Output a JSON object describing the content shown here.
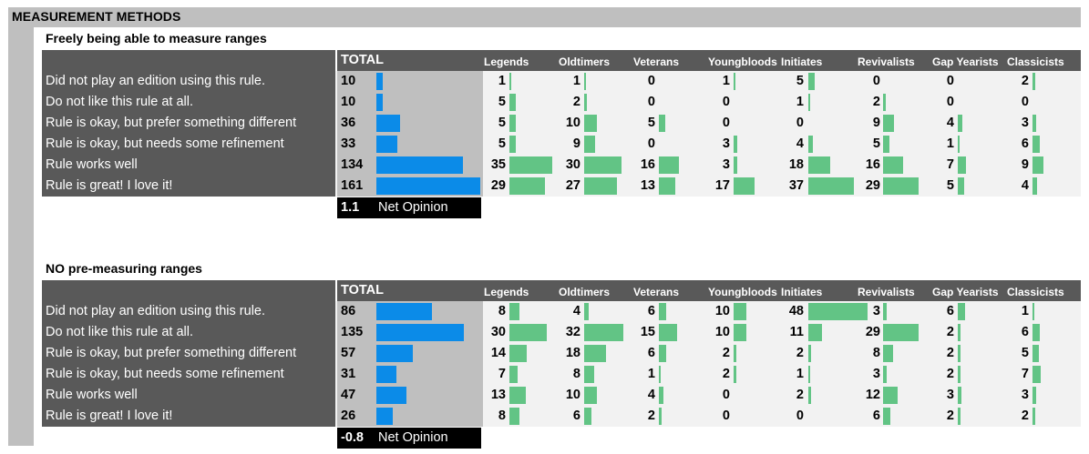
{
  "header": "MEASUREMENT METHODS",
  "columns": [
    "Legends",
    "Oldtimers",
    "Veterans",
    "Youngbloods",
    "Initiates",
    "Revivalists",
    "Gap Yearists",
    "Classicists"
  ],
  "total_label": "TOTAL",
  "net_label": "Net Opinion",
  "sections": [
    {
      "title": "Freely being able to measure ranges",
      "net_value": "1.1",
      "rows": [
        {
          "label": "Did not play an edition using this rule.",
          "total": 10,
          "values": [
            1,
            1,
            0,
            1,
            5,
            0,
            0,
            2
          ]
        },
        {
          "label": "Do not like this rule at all.",
          "total": 10,
          "values": [
            5,
            2,
            0,
            0,
            1,
            2,
            0,
            0
          ]
        },
        {
          "label": "Rule is okay, but prefer something different",
          "total": 36,
          "values": [
            5,
            10,
            5,
            0,
            0,
            9,
            4,
            3
          ]
        },
        {
          "label": "Rule is okay, but needs some refinement",
          "total": 33,
          "values": [
            5,
            9,
            0,
            3,
            4,
            5,
            1,
            6
          ]
        },
        {
          "label": "Rule works well",
          "total": 134,
          "values": [
            35,
            30,
            16,
            3,
            18,
            16,
            7,
            9
          ]
        },
        {
          "label": "Rule is great! I love it!",
          "total": 161,
          "values": [
            29,
            27,
            13,
            17,
            37,
            29,
            5,
            4
          ]
        }
      ]
    },
    {
      "title": "NO pre-measuring ranges",
      "net_value": "-0.8",
      "rows": [
        {
          "label": "Did not play an edition using this rule.",
          "total": 86,
          "values": [
            8,
            4,
            6,
            10,
            48,
            3,
            6,
            1
          ]
        },
        {
          "label": "Do not like this rule at all.",
          "total": 135,
          "values": [
            30,
            32,
            15,
            10,
            11,
            29,
            2,
            6
          ]
        },
        {
          "label": "Rule is okay, but prefer something different",
          "total": 57,
          "values": [
            14,
            18,
            6,
            2,
            2,
            8,
            2,
            5
          ]
        },
        {
          "label": "Rule is okay, but needs some refinement",
          "total": 31,
          "values": [
            7,
            8,
            1,
            2,
            1,
            3,
            2,
            7
          ]
        },
        {
          "label": "Rule works well",
          "total": 47,
          "values": [
            13,
            10,
            4,
            0,
            2,
            12,
            3,
            3
          ]
        },
        {
          "label": "Rule is great! I love it!",
          "total": 26,
          "values": [
            8,
            6,
            2,
            0,
            0,
            6,
            2,
            2
          ]
        }
      ]
    }
  ],
  "colors": {
    "total_bar": "#0b8be8",
    "group_bar": "#62c485",
    "label_bg": "#595959",
    "total_bg": "#bfbfbf"
  }
}
